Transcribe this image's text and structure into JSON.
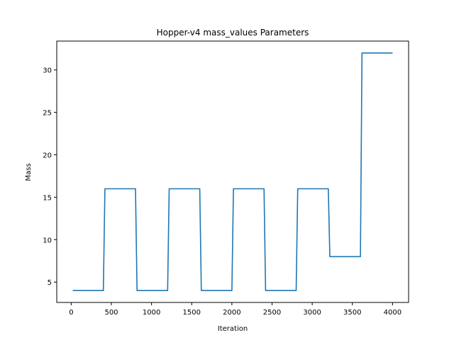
{
  "chart_data": {
    "type": "line",
    "title": "Hopper-v4 mass_values Parameters",
    "xlabel": "Iteration",
    "ylabel": "Mass",
    "xlim": [
      -180,
      4200
    ],
    "ylim": [
      2.6,
      33.4
    ],
    "xticks": [
      0,
      500,
      1000,
      1500,
      2000,
      2500,
      3000,
      3500,
      4000
    ],
    "yticks": [
      5,
      10,
      15,
      20,
      25,
      30
    ],
    "grid": false,
    "line_color": "#1f77b4",
    "series": [
      {
        "x": [
          20,
          400,
          420,
          800,
          820,
          1200,
          1220,
          1600,
          1620,
          2000,
          2020,
          2400,
          2420,
          2800,
          2820,
          3200,
          3220,
          3600,
          3620,
          4000
        ],
        "y": [
          4,
          4,
          16,
          16,
          4,
          4,
          16,
          16,
          4,
          4,
          16,
          16,
          4,
          4,
          16,
          16,
          8,
          8,
          32,
          32
        ]
      }
    ]
  }
}
